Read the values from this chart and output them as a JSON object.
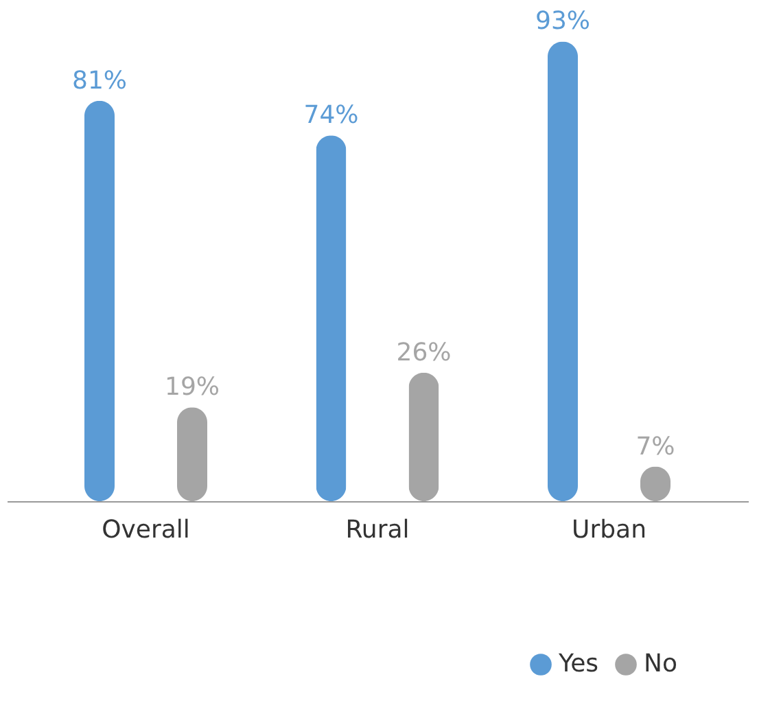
{
  "chart_data": {
    "type": "bar",
    "categories": [
      "Overall",
      "Rural",
      "Urban"
    ],
    "series": [
      {
        "name": "Yes",
        "color": "#5b9bd5",
        "values": [
          81,
          74,
          93
        ],
        "value_labels": [
          "81%",
          "74%",
          "93%"
        ]
      },
      {
        "name": "No",
        "color": "#a5a5a5",
        "values": [
          19,
          26,
          7
        ],
        "value_labels": [
          "19%",
          "26%",
          "7%"
        ]
      }
    ],
    "legend": "bottom right",
    "grid": false
  }
}
